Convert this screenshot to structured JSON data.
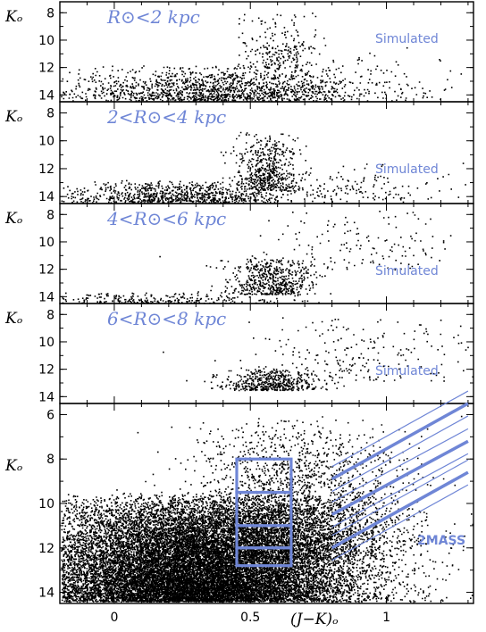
{
  "figure": {
    "y_axis_label": "Kₒ",
    "x_axis_label": "(J−K)ₒ"
  },
  "colors": {
    "annotation": "#6f86d6",
    "points": "#000000",
    "frame": "#000000"
  },
  "chart_data": [
    {
      "type": "scatter",
      "panel_label": "R⊙<2 kpc",
      "tag": "Simulated",
      "xlim": [
        -0.2,
        1.32
      ],
      "ylim": [
        14.5,
        7.2
      ],
      "y_ticks": [
        8,
        10,
        12,
        14
      ],
      "density": 1.0,
      "components": [
        {
          "desc": "dwarfs",
          "x_center": 0.38,
          "x_spread": 0.28,
          "k_bright": 11.8,
          "k_faint": 14.4,
          "weight": 0.82
        },
        {
          "desc": "red clump/giants",
          "x_center": 0.6,
          "x_spread": 0.07,
          "k_bright": 7.5,
          "k_faint": 12.0,
          "weight": 0.12
        },
        {
          "desc": "scattered",
          "x_center": 0.9,
          "x_spread": 0.22,
          "k_bright": 10.0,
          "k_faint": 14.2,
          "weight": 0.06
        }
      ]
    },
    {
      "type": "scatter",
      "panel_label": "2<R⊙<4 kpc",
      "tag": "Simulated",
      "xlim": [
        -0.2,
        1.32
      ],
      "ylim": [
        14.5,
        7.2
      ],
      "y_ticks": [
        8,
        10,
        12,
        14
      ],
      "density": 0.85,
      "components": [
        {
          "desc": "dwarfs",
          "x_center": 0.22,
          "x_spread": 0.22,
          "k_bright": 12.8,
          "k_faint": 14.4,
          "weight": 0.55
        },
        {
          "desc": "red clump/giants",
          "x_center": 0.56,
          "x_spread": 0.06,
          "k_bright": 9.2,
          "k_faint": 13.5,
          "weight": 0.35
        },
        {
          "desc": "giant branch",
          "x_center": 0.85,
          "x_spread": 0.18,
          "k_bright": 11.5,
          "k_faint": 14.2,
          "weight": 0.1
        }
      ]
    },
    {
      "type": "scatter",
      "panel_label": "4<R⊙<6 kpc",
      "tag": "Simulated",
      "xlim": [
        -0.2,
        1.32
      ],
      "ylim": [
        14.5,
        7.2
      ],
      "y_ticks": [
        8,
        10,
        12,
        14
      ],
      "density": 0.55,
      "components": [
        {
          "desc": "dwarfs",
          "x_center": 0.15,
          "x_spread": 0.25,
          "k_bright": 13.6,
          "k_faint": 14.5,
          "weight": 0.3
        },
        {
          "desc": "red clump",
          "x_center": 0.58,
          "x_spread": 0.08,
          "k_bright": 11.0,
          "k_faint": 13.8,
          "weight": 0.55
        },
        {
          "desc": "giant branch",
          "x_center": 0.9,
          "x_spread": 0.22,
          "k_bright": 7.5,
          "k_faint": 12.0,
          "weight": 0.15
        }
      ]
    },
    {
      "type": "scatter",
      "panel_label": "6<R⊙<8 kpc",
      "tag": "Simulated",
      "xlim": [
        -0.2,
        1.32
      ],
      "ylim": [
        14.5,
        7.2
      ],
      "y_ticks": [
        8,
        10,
        12,
        14
      ],
      "density": 0.4,
      "components": [
        {
          "desc": "red clump",
          "x_center": 0.58,
          "x_spread": 0.09,
          "k_bright": 11.8,
          "k_faint": 13.5,
          "weight": 0.7
        },
        {
          "desc": "giant branch",
          "x_center": 0.9,
          "x_spread": 0.2,
          "k_bright": 8.0,
          "k_faint": 13.0,
          "weight": 0.3
        }
      ]
    },
    {
      "type": "scatter",
      "panel_label": "",
      "tag": "2MASS",
      "xlim": [
        -0.2,
        1.32
      ],
      "ylim": [
        14.5,
        5.5
      ],
      "y_ticks": [
        6,
        8,
        10,
        12,
        14
      ],
      "x_ticks": [
        0,
        0.5,
        1
      ],
      "x_tick_labels": [
        "0",
        "0.5",
        "1"
      ],
      "density": 4.0,
      "components": [
        {
          "desc": "dwarfs",
          "x_center": 0.3,
          "x_spread": 0.3,
          "k_bright": 9.5,
          "k_faint": 14.4,
          "weight": 0.88
        },
        {
          "desc": "red clump/giants",
          "x_center": 0.65,
          "x_spread": 0.2,
          "k_bright": 6.0,
          "k_faint": 12.5,
          "weight": 0.12
        }
      ],
      "selection_boxes": [
        {
          "x": [
            0.45,
            0.65
          ],
          "k": [
            8.0,
            9.5
          ]
        },
        {
          "x": [
            0.45,
            0.65
          ],
          "k": [
            9.5,
            11.0
          ]
        },
        {
          "x": [
            0.45,
            0.65
          ],
          "k": [
            11.0,
            12.0
          ]
        },
        {
          "x": [
            0.45,
            0.65
          ],
          "k": [
            12.0,
            12.8
          ]
        }
      ],
      "diagonal_strips": [
        {
          "x0": 0.8,
          "k0": 8.9,
          "x1": 1.3,
          "k1": 5.5
        },
        {
          "x0": 0.8,
          "k0": 10.5,
          "x1": 1.3,
          "k1": 7.2
        },
        {
          "x0": 0.8,
          "k0": 12.0,
          "x1": 1.3,
          "k1": 8.6
        }
      ]
    }
  ]
}
